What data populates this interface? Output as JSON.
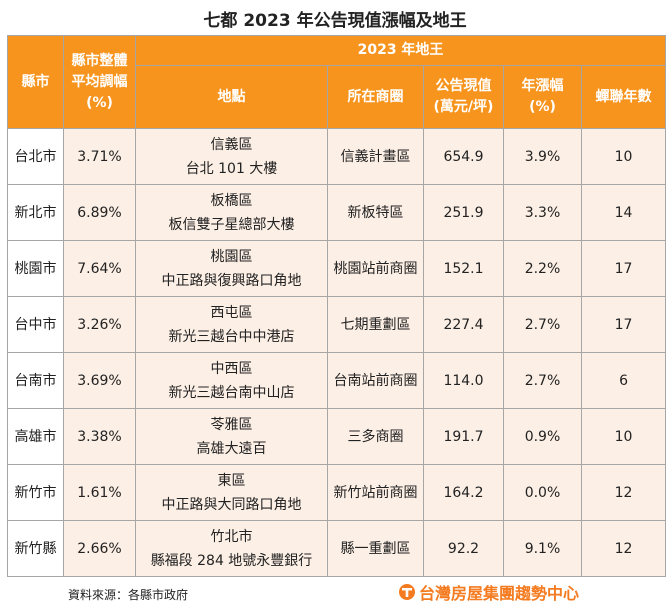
{
  "title": "七都 2023 年公告現值漲幅及地王",
  "header": {
    "city": "縣市",
    "avg_change": [
      "縣市整體",
      "平均調幅",
      "(%)"
    ],
    "group": "2023 年地王",
    "location": "地點",
    "district": "所在商圈",
    "value": [
      "公告現值",
      "(萬元/坪)"
    ],
    "change": [
      "年漲幅",
      "(%)"
    ],
    "years": "蟬聯年數"
  },
  "table": {
    "rows": [
      [
        "台北市",
        "3.71%",
        [
          "信義區",
          "台北 101 大樓"
        ],
        "信義計畫區",
        "654.9",
        "3.9%",
        "10"
      ],
      [
        "新北市",
        "6.89%",
        [
          "板橋區",
          "板信雙子星總部大樓"
        ],
        "新板特區",
        "251.9",
        "3.3%",
        "14"
      ],
      [
        "桃園市",
        "7.64%",
        [
          "桃園區",
          "中正路與復興路口角地"
        ],
        "桃園站前商圈",
        "152.1",
        "2.2%",
        "17"
      ],
      [
        "台中市",
        "3.26%",
        [
          "西屯區",
          "新光三越台中中港店"
        ],
        "七期重劃區",
        "227.4",
        "2.7%",
        "17"
      ],
      [
        "台南市",
        "3.69%",
        [
          "中西區",
          "新光三越台南中山店"
        ],
        "台南站前商圈",
        "114.0",
        "2.7%",
        "6"
      ],
      [
        "高雄市",
        "3.38%",
        [
          "苓雅區",
          "高雄大遠百"
        ],
        "三多商圈",
        "191.7",
        "0.9%",
        "10"
      ],
      [
        "新竹市",
        "1.61%",
        [
          "東區",
          "中正路與大同路口角地"
        ],
        "新竹站前商圈",
        "164.2",
        "0.0%",
        "12"
      ],
      [
        "新竹縣",
        "2.66%",
        [
          "竹北市",
          "縣福段 284 地號永豐銀行"
        ],
        "縣一重劃區",
        "92.2",
        "9.1%",
        "12"
      ]
    ]
  },
  "footer": {
    "source": "資料來源：各縣市政府",
    "brand": "台灣房屋集團趨勢中心"
  }
}
